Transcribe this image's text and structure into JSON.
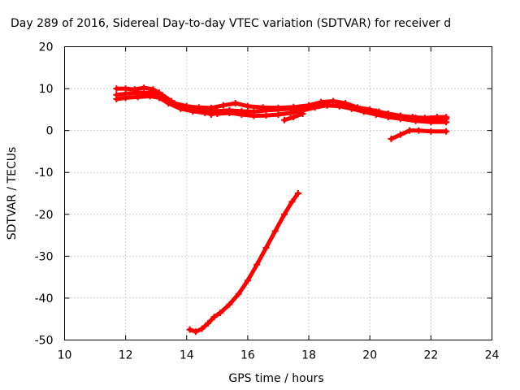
{
  "chart_data": {
    "type": "line",
    "title": "Day 289 of 2016, Sidereal Day-to-day VTEC variation (SDTVAR) for receiver d",
    "xlabel": "GPS time / hours",
    "ylabel": "SDTVAR / TECUs",
    "xlim": [
      10,
      24
    ],
    "ylim": [
      -50,
      20
    ],
    "xticks": [
      10,
      12,
      14,
      16,
      18,
      20,
      22,
      24
    ],
    "yticks": [
      20,
      10,
      0,
      -10,
      -20,
      -30,
      -40,
      -50
    ],
    "grid": true,
    "legend": "none",
    "color": "#ff0000",
    "series": [
      {
        "x": [
          11.7,
          12.0,
          12.3,
          12.6,
          12.9,
          13.1,
          13.3,
          13.6,
          14.0,
          14.4,
          14.8,
          15.2,
          15.6,
          16.0,
          16.5,
          17.0,
          17.5,
          18.0,
          18.4,
          18.8,
          19.2,
          19.6,
          20.0,
          20.3,
          20.6,
          21.0,
          21.4,
          21.8,
          22.2,
          22.5
        ],
        "values": [
          10.0,
          10.0,
          9.8,
          10.2,
          9.8,
          9.0,
          7.5,
          6.5,
          5.8,
          5.5,
          5.4,
          6.0,
          6.5,
          5.8,
          5.5,
          5.4,
          5.6,
          6.0,
          6.8,
          7.0,
          6.5,
          5.5,
          5.0,
          4.5,
          4.0,
          3.5,
          3.2,
          3.0,
          3.2,
          3.2
        ]
      },
      {
        "x": [
          11.7,
          12.0,
          12.4,
          12.8,
          13.2,
          13.5,
          13.8,
          14.2,
          14.6,
          15.0,
          15.4,
          15.8,
          16.2,
          16.6,
          17.0,
          17.4,
          17.8,
          18.2,
          18.6,
          19.0,
          19.4,
          19.8,
          20.2,
          20.6,
          21.0,
          21.5,
          22.0,
          22.5
        ],
        "values": [
          8.5,
          8.8,
          9.0,
          9.0,
          8.5,
          7.0,
          5.5,
          5.0,
          4.8,
          4.6,
          4.8,
          4.6,
          4.5,
          4.8,
          5.0,
          5.2,
          5.5,
          5.8,
          6.0,
          5.9,
          5.5,
          5.0,
          4.5,
          4.0,
          3.5,
          3.0,
          2.8,
          2.8
        ]
      },
      {
        "x": [
          11.7,
          12.0,
          12.4,
          12.8,
          13.1,
          13.4,
          13.8,
          14.2,
          14.6,
          15.0,
          15.4,
          15.8,
          16.2,
          16.6,
          17.0,
          17.4,
          17.8,
          18.2,
          18.6,
          19.0,
          19.4,
          19.8,
          20.2,
          20.6,
          21.0,
          21.5,
          22.0,
          22.5
        ],
        "values": [
          7.5,
          7.8,
          8.0,
          8.2,
          7.8,
          6.5,
          5.2,
          4.6,
          4.2,
          4.0,
          4.2,
          3.8,
          3.5,
          3.6,
          3.8,
          4.2,
          4.8,
          5.5,
          6.0,
          5.8,
          5.2,
          4.5,
          3.8,
          3.2,
          2.8,
          2.3,
          2.0,
          2.0
        ]
      },
      {
        "x": [
          14.6,
          14.8,
          15.0
        ],
        "values": [
          4.5,
          3.8,
          4.2
        ]
      },
      {
        "x": [
          17.2,
          17.5,
          17.8
        ],
        "values": [
          2.5,
          3.2,
          4.0
        ]
      },
      {
        "x": [
          20.7,
          21.0,
          21.3,
          21.6,
          22.0,
          22.5
        ],
        "values": [
          -2.0,
          -1.0,
          0.0,
          0.0,
          -0.2,
          -0.2
        ]
      },
      {
        "x": [
          14.1,
          14.3,
          14.5,
          14.7,
          14.9,
          15.1,
          15.4,
          15.7,
          16.0,
          16.3,
          16.6,
          16.9,
          17.2,
          17.45,
          17.65
        ],
        "values": [
          -47.5,
          -48.0,
          -47.3,
          -46.0,
          -44.5,
          -43.5,
          -41.5,
          -39.0,
          -35.8,
          -32.0,
          -28.0,
          -24.0,
          -20.0,
          -17.0,
          -15.0
        ]
      }
    ]
  }
}
